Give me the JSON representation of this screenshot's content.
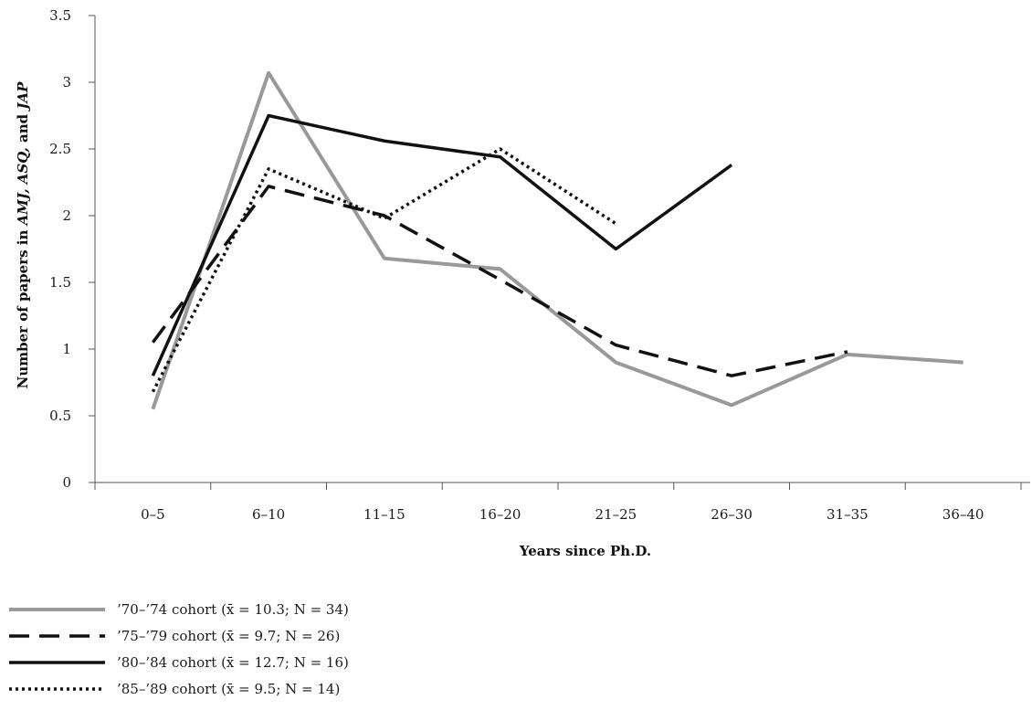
{
  "chart_data": {
    "type": "line",
    "title": "",
    "xlabel": "Years since Ph.D.",
    "ylabel_parts": [
      {
        "text": "Number of papers in ",
        "italic": false
      },
      {
        "text": "AMJ, ASQ,",
        "italic": true
      },
      {
        "text": " and ",
        "italic": false
      },
      {
        "text": "JAP",
        "italic": true
      }
    ],
    "categories": [
      "0–5",
      "6–10",
      "11–15",
      "16–20",
      "21–25",
      "26–30",
      "31–35",
      "36–40"
    ],
    "ylim": [
      0,
      3.5
    ],
    "yticks": [
      "0",
      "0.5",
      "1",
      "1.5",
      "2",
      "2.5",
      "3",
      "3.5"
    ],
    "grid": false,
    "legend_position": "bottom-left",
    "series": [
      {
        "name": "’70–’74 cohort (x̄ = 10.3; N = 34)",
        "color": "#999999",
        "style": "solid",
        "values": [
          0.55,
          3.07,
          1.68,
          1.6,
          0.9,
          0.58,
          0.96,
          0.9
        ]
      },
      {
        "name": "’75–’79 cohort (x̄ = 9.7; N = 26)",
        "color": "#111111",
        "style": "dashed",
        "values": [
          1.05,
          2.22,
          2.0,
          1.52,
          1.03,
          0.8,
          0.98,
          null
        ]
      },
      {
        "name": "’80–’84 cohort (x̄ = 12.7; N = 16)",
        "color": "#111111",
        "style": "solid",
        "values": [
          0.8,
          2.75,
          2.56,
          2.44,
          1.75,
          2.38,
          null,
          null
        ]
      },
      {
        "name": "’85–’89 cohort (x̄ = 9.5; N = 14)",
        "color": "#111111",
        "style": "dotted",
        "values": [
          0.68,
          2.35,
          1.98,
          2.5,
          1.94,
          null,
          null,
          null
        ]
      }
    ]
  }
}
